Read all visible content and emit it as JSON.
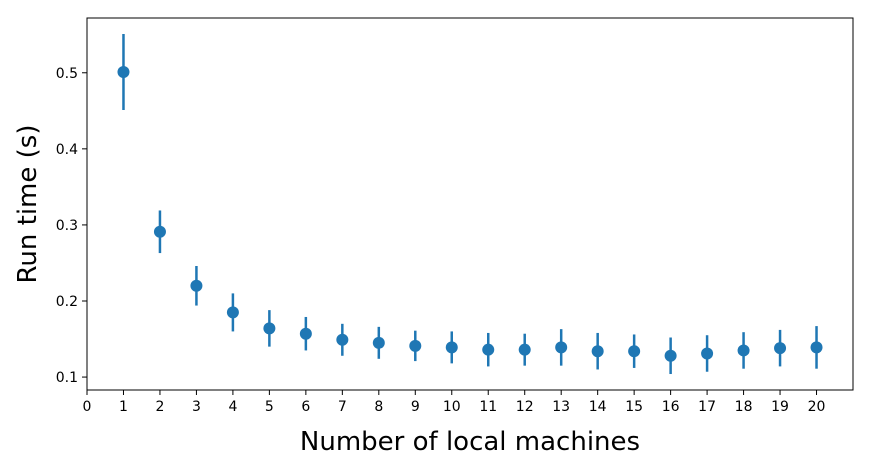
{
  "chart_data": {
    "type": "errorbar",
    "xlabel": "Number of local machines",
    "ylabel": "Run time (s)",
    "x": [
      1,
      2,
      3,
      4,
      5,
      6,
      7,
      8,
      9,
      10,
      11,
      12,
      13,
      14,
      15,
      16,
      17,
      18,
      19,
      20
    ],
    "values": [
      0.501,
      0.291,
      0.22,
      0.185,
      0.164,
      0.157,
      0.149,
      0.145,
      0.141,
      0.139,
      0.136,
      0.136,
      0.139,
      0.134,
      0.134,
      0.128,
      0.131,
      0.135,
      0.138,
      0.139
    ],
    "errors": [
      0.05,
      0.028,
      0.026,
      0.025,
      0.024,
      0.022,
      0.021,
      0.021,
      0.02,
      0.021,
      0.022,
      0.021,
      0.024,
      0.024,
      0.022,
      0.024,
      0.024,
      0.024,
      0.024,
      0.028
    ],
    "color": "#1f77b4",
    "xlim": [
      0,
      21
    ],
    "ylim": [
      0.083,
      0.572
    ],
    "xticks": [
      0,
      1,
      2,
      3,
      4,
      5,
      6,
      7,
      8,
      9,
      10,
      11,
      12,
      13,
      14,
      15,
      16,
      17,
      18,
      19,
      20
    ],
    "yticks": [
      0.1,
      0.2,
      0.3,
      0.4,
      0.5
    ]
  }
}
